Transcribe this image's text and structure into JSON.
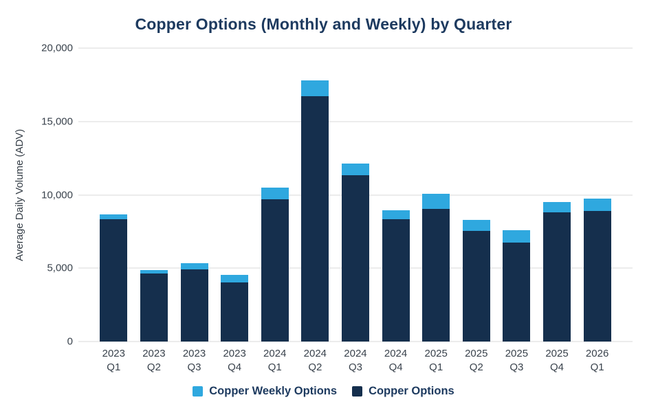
{
  "chart_data": {
    "type": "bar",
    "stacked": true,
    "title": "Copper Options (Monthly and Weekly) by Quarter",
    "xlabel": "",
    "ylabel": "Average Daily Volume (ADV)",
    "ylim": [
      0,
      20000
    ],
    "grid": true,
    "legend_position": "bottom",
    "yticks": [
      {
        "value": 20000,
        "label": "20,000"
      },
      {
        "value": 15000,
        "label": "15,000"
      },
      {
        "value": 10000,
        "label": "10,000"
      },
      {
        "value": 5000,
        "label": "5,000"
      },
      {
        "value": 0,
        "label": "0"
      }
    ],
    "categories": [
      [
        "2023",
        "Q1"
      ],
      [
        "2023",
        "Q2"
      ],
      [
        "2023",
        "Q3"
      ],
      [
        "2023",
        "Q4"
      ],
      [
        "2024",
        "Q1"
      ],
      [
        "2024",
        "Q2"
      ],
      [
        "2024",
        "Q3"
      ],
      [
        "2024",
        "Q4"
      ],
      [
        "2025",
        "Q1"
      ],
      [
        "2025",
        "Q2"
      ],
      [
        "2025",
        "Q3"
      ],
      [
        "2025",
        "Q4"
      ],
      [
        "2026",
        "Q1"
      ]
    ],
    "series": [
      {
        "name": "Copper Weekly Options",
        "color": "#2fa8df",
        "values": [
          300,
          200,
          450,
          500,
          800,
          1100,
          800,
          600,
          1000,
          750,
          850,
          700,
          850
        ]
      },
      {
        "name": "Copper Options",
        "color": "#152f4d",
        "values": [
          8350,
          4650,
          4900,
          4050,
          9700,
          16700,
          11350,
          8350,
          9050,
          7550,
          6750,
          8800,
          8900
        ]
      }
    ],
    "totals": [
      8650,
      4850,
      5350,
      4550,
      10500,
      17800,
      12150,
      8950,
      10050,
      8300,
      7600,
      9500,
      9750
    ],
    "colors": {
      "grid": "#d9d9d9",
      "title_text": "#1d3a5f",
      "tick_text": "#39424c",
      "axis_title_text": "#333c45"
    }
  }
}
